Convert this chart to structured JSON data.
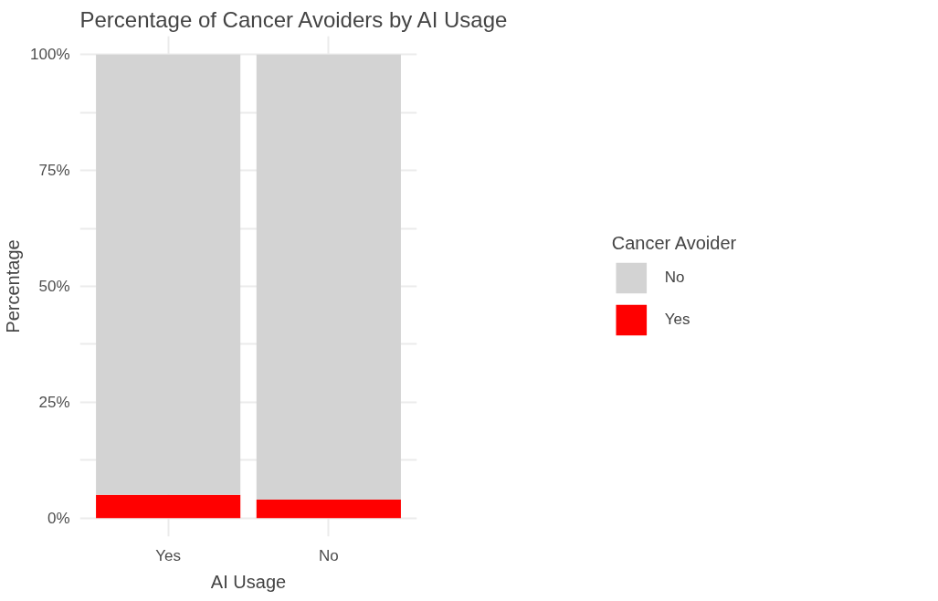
{
  "chart_data": {
    "type": "bar",
    "title": "Percentage of Cancer Avoiders by AI Usage",
    "xlabel": "AI Usage",
    "ylabel": "Percentage",
    "legend_title": "Cancer Avoider",
    "categories": [
      "Yes",
      "No"
    ],
    "stacked": true,
    "series": [
      {
        "name": "Yes",
        "color": "#ff0000",
        "values": [
          5,
          4
        ]
      },
      {
        "name": "No",
        "color": "#d3d3d3",
        "values": [
          95,
          96
        ]
      }
    ],
    "ylim": [
      -4,
      104
    ],
    "yticks": [
      {
        "value": 0,
        "label": "0%"
      },
      {
        "value": 12.5,
        "label": null
      },
      {
        "value": 25,
        "label": "25%"
      },
      {
        "value": 37.5,
        "label": null
      },
      {
        "value": 50,
        "label": "50%"
      },
      {
        "value": 62.5,
        "label": null
      },
      {
        "value": 75,
        "label": "75%"
      },
      {
        "value": 87.5,
        "label": null
      },
      {
        "value": 100,
        "label": "100%"
      }
    ],
    "grid": true,
    "legend": "right"
  }
}
